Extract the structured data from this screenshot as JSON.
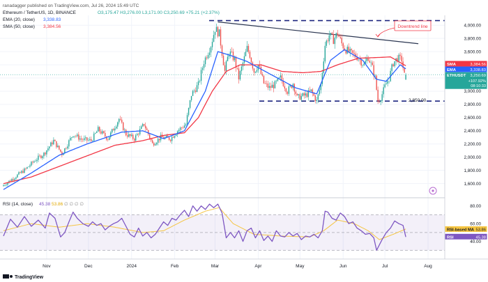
{
  "header": {
    "author_line": "ranadagger published on TradingView.com, Jul 26, 2024 15:49 UTC",
    "symbol": "Ethereum / TetherUS, 1D, BINANCE",
    "ohlc": "O3,175.47  H3,276.00  L3,171.00  C3,250.69  +75.21 (+2.37%)",
    "ema_label": "EMA (20, close)",
    "ema_value": "3,338.83",
    "sma_label": "SMA (50, close)",
    "sma_value": "3,384.56"
  },
  "rsi_header": {
    "label": "RSI (14, close)",
    "value": "45.38",
    "ma_value": "53.86",
    "extra": "∅ ∅ ∅ ∅"
  },
  "annotations": {
    "downtrend": "Downtrend line",
    "support": "2,850.00"
  },
  "badges": {
    "sma": {
      "label": "SMA",
      "value": "3,384.56"
    },
    "ema": {
      "label": "EMA",
      "value": "3,338.83"
    },
    "price": {
      "label": "ETHUSDT",
      "value": "3,250.69",
      "change": "+107.92%",
      "time": "08:10:33"
    },
    "rsi_ma": {
      "label": "RSI-based MA",
      "value": "53.86"
    },
    "rsi": {
      "label": "RSI",
      "value": "45.38"
    }
  },
  "footer": {
    "brand": "TradingView"
  },
  "colors": {
    "up": "#26a69a",
    "down": "#ef5350",
    "ema": "#2962ff",
    "sma": "#f23645",
    "rsi": "#7e57c2",
    "rsi_ma": "#f5c542",
    "trend": "#2a3550",
    "annotation": "#f23645"
  },
  "chart_data": [
    {
      "type": "candlestick",
      "title": "Ethereum / TetherUS, 1D, BINANCE",
      "x_ticks": [
        "Nov",
        "Dec",
        "2024",
        "Feb",
        "Mar",
        "Apr",
        "May",
        "Jun",
        "Jul",
        "Aug"
      ],
      "x_tick_days": [
        31,
        61,
        92,
        123,
        152,
        183,
        213,
        244,
        274,
        305
      ],
      "y_ticks": [
        1600,
        1800,
        2000,
        2200,
        2400,
        2600,
        2800,
        3000,
        3200,
        3400,
        3600,
        3800,
        4000
      ],
      "ylim": [
        1480,
        4150
      ],
      "anchors": [
        [
          0,
          1560
        ],
        [
          8,
          1680
        ],
        [
          17,
          1820
        ],
        [
          24,
          1960
        ],
        [
          30,
          2050
        ],
        [
          37,
          2250
        ],
        [
          43,
          2050
        ],
        [
          51,
          2350
        ],
        [
          57,
          2270
        ],
        [
          64,
          2250
        ],
        [
          69,
          2420
        ],
        [
          76,
          2280
        ],
        [
          84,
          2580
        ],
        [
          89,
          2350
        ],
        [
          95,
          2280
        ],
        [
          102,
          2500
        ],
        [
          108,
          2200
        ],
        [
          114,
          2300
        ],
        [
          121,
          2280
        ],
        [
          126,
          2400
        ],
        [
          132,
          2500
        ],
        [
          136,
          2950
        ],
        [
          141,
          3100
        ],
        [
          145,
          3450
        ],
        [
          148,
          3600
        ],
        [
          150,
          3700
        ],
        [
          153,
          3950
        ],
        [
          156,
          3870
        ],
        [
          160,
          3300
        ],
        [
          163,
          3600
        ],
        [
          167,
          3480
        ],
        [
          170,
          3200
        ],
        [
          174,
          3500
        ],
        [
          176,
          3650
        ],
        [
          178,
          3550
        ],
        [
          181,
          3300
        ],
        [
          184,
          3400
        ],
        [
          188,
          3120
        ],
        [
          192,
          3050
        ],
        [
          196,
          3100
        ],
        [
          200,
          3200
        ],
        [
          205,
          3000
        ],
        [
          209,
          3120
        ],
        [
          212,
          2900
        ],
        [
          218,
          2940
        ],
        [
          222,
          3000
        ],
        [
          226,
          2850
        ],
        [
          229,
          3100
        ],
        [
          232,
          3700
        ],
        [
          235,
          3850
        ],
        [
          238,
          3780
        ],
        [
          241,
          3880
        ],
        [
          244,
          3720
        ],
        [
          246,
          3650
        ],
        [
          250,
          3580
        ],
        [
          255,
          3520
        ],
        [
          260,
          3400
        ],
        [
          263,
          3520
        ],
        [
          266,
          3350
        ],
        [
          268,
          3200
        ],
        [
          270,
          2850
        ],
        [
          272,
          2900
        ],
        [
          275,
          3070
        ],
        [
          278,
          3200
        ],
        [
          281,
          3430
        ],
        [
          284,
          3500
        ],
        [
          287,
          3480
        ],
        [
          289,
          3240
        ]
      ],
      "ema20": [
        [
          0,
          1510
        ],
        [
          20,
          1760
        ],
        [
          40,
          2030
        ],
        [
          60,
          2200
        ],
        [
          85,
          2380
        ],
        [
          100,
          2400
        ],
        [
          115,
          2280
        ],
        [
          130,
          2400
        ],
        [
          145,
          3000
        ],
        [
          154,
          3600
        ],
        [
          162,
          3550
        ],
        [
          175,
          3450
        ],
        [
          188,
          3300
        ],
        [
          210,
          3050
        ],
        [
          225,
          2960
        ],
        [
          235,
          3470
        ],
        [
          245,
          3630
        ],
        [
          258,
          3470
        ],
        [
          268,
          3180
        ],
        [
          275,
          3150
        ],
        [
          285,
          3400
        ],
        [
          289,
          3339
        ]
      ],
      "sma50": [
        [
          0,
          1600
        ],
        [
          20,
          1700
        ],
        [
          40,
          1860
        ],
        [
          60,
          2020
        ],
        [
          80,
          2180
        ],
        [
          100,
          2250
        ],
        [
          115,
          2330
        ],
        [
          130,
          2370
        ],
        [
          140,
          2600
        ],
        [
          150,
          3000
        ],
        [
          160,
          3300
        ],
        [
          170,
          3400
        ],
        [
          185,
          3400
        ],
        [
          200,
          3300
        ],
        [
          215,
          3280
        ],
        [
          228,
          3300
        ],
        [
          240,
          3400
        ],
        [
          255,
          3500
        ],
        [
          268,
          3510
        ],
        [
          278,
          3520
        ],
        [
          289,
          3385
        ]
      ],
      "downtrend_line": [
        [
          154,
          4050
        ],
        [
          298,
          3720
        ]
      ],
      "support_line": 2850,
      "resistance_line": 4070,
      "last": {
        "open": 3175.47,
        "high": 3276.0,
        "low": 3171.0,
        "close": 3250.69
      }
    },
    {
      "type": "line",
      "title": "RSI (14, close)",
      "y_ticks": [
        40,
        60,
        80
      ],
      "ylim": [
        28,
        86
      ],
      "overbought": 70,
      "oversold": 30,
      "rsi": [
        [
          0,
          46
        ],
        [
          5,
          65
        ],
        [
          10,
          56
        ],
        [
          15,
          68
        ],
        [
          20,
          57
        ],
        [
          25,
          64
        ],
        [
          30,
          55
        ],
        [
          33,
          72
        ],
        [
          37,
          66
        ],
        [
          41,
          45
        ],
        [
          44,
          50
        ],
        [
          47,
          62
        ],
        [
          50,
          73
        ],
        [
          53,
          66
        ],
        [
          57,
          60
        ],
        [
          61,
          57
        ],
        [
          64,
          62
        ],
        [
          67,
          58
        ],
        [
          70,
          60
        ],
        [
          73,
          53
        ],
        [
          76,
          57
        ],
        [
          79,
          60
        ],
        [
          82,
          62
        ],
        [
          85,
          66
        ],
        [
          88,
          57
        ],
        [
          91,
          48
        ],
        [
          94,
          45
        ],
        [
          97,
          55
        ],
        [
          100,
          46
        ],
        [
          103,
          50
        ],
        [
          106,
          44
        ],
        [
          109,
          48
        ],
        [
          112,
          55
        ],
        [
          115,
          62
        ],
        [
          118,
          58
        ],
        [
          121,
          66
        ],
        [
          124,
          64
        ],
        [
          127,
          70
        ],
        [
          130,
          75
        ],
        [
          133,
          68
        ],
        [
          136,
          80
        ],
        [
          139,
          74
        ],
        [
          142,
          80
        ],
        [
          145,
          76
        ],
        [
          148,
          82
        ],
        [
          151,
          78
        ],
        [
          154,
          82
        ],
        [
          157,
          72
        ],
        [
          160,
          44
        ],
        [
          163,
          50
        ],
        [
          166,
          44
        ],
        [
          169,
          52
        ],
        [
          172,
          40
        ],
        [
          175,
          52
        ],
        [
          178,
          55
        ],
        [
          181,
          44
        ],
        [
          184,
          52
        ],
        [
          187,
          41
        ],
        [
          190,
          46
        ],
        [
          193,
          40
        ],
        [
          196,
          52
        ],
        [
          199,
          46
        ],
        [
          202,
          45
        ],
        [
          205,
          50
        ],
        [
          208,
          46
        ],
        [
          211,
          49
        ],
        [
          214,
          42
        ],
        [
          217,
          46
        ],
        [
          220,
          45
        ],
        [
          223,
          48
        ],
        [
          226,
          44
        ],
        [
          229,
          52
        ],
        [
          231,
          74
        ],
        [
          233,
          73
        ],
        [
          236,
          66
        ],
        [
          239,
          64
        ],
        [
          242,
          72
        ],
        [
          245,
          68
        ],
        [
          248,
          60
        ],
        [
          251,
          62
        ],
        [
          254,
          55
        ],
        [
          257,
          52
        ],
        [
          260,
          48
        ],
        [
          263,
          49
        ],
        [
          266,
          44
        ],
        [
          268,
          30
        ],
        [
          270,
          36
        ],
        [
          272,
          42
        ],
        [
          275,
          50
        ],
        [
          278,
          55
        ],
        [
          281,
          63
        ],
        [
          284,
          60
        ],
        [
          287,
          58
        ],
        [
          289,
          45
        ]
      ],
      "rsi_ma": [
        [
          0,
          52
        ],
        [
          20,
          60
        ],
        [
          40,
          56
        ],
        [
          60,
          60
        ],
        [
          80,
          56
        ],
        [
          100,
          50
        ],
        [
          115,
          52
        ],
        [
          130,
          64
        ],
        [
          145,
          74
        ],
        [
          155,
          78
        ],
        [
          165,
          60
        ],
        [
          180,
          48
        ],
        [
          200,
          46
        ],
        [
          220,
          45
        ],
        [
          230,
          52
        ],
        [
          240,
          64
        ],
        [
          252,
          60
        ],
        [
          262,
          52
        ],
        [
          270,
          42
        ],
        [
          280,
          48
        ],
        [
          289,
          54
        ]
      ]
    }
  ]
}
